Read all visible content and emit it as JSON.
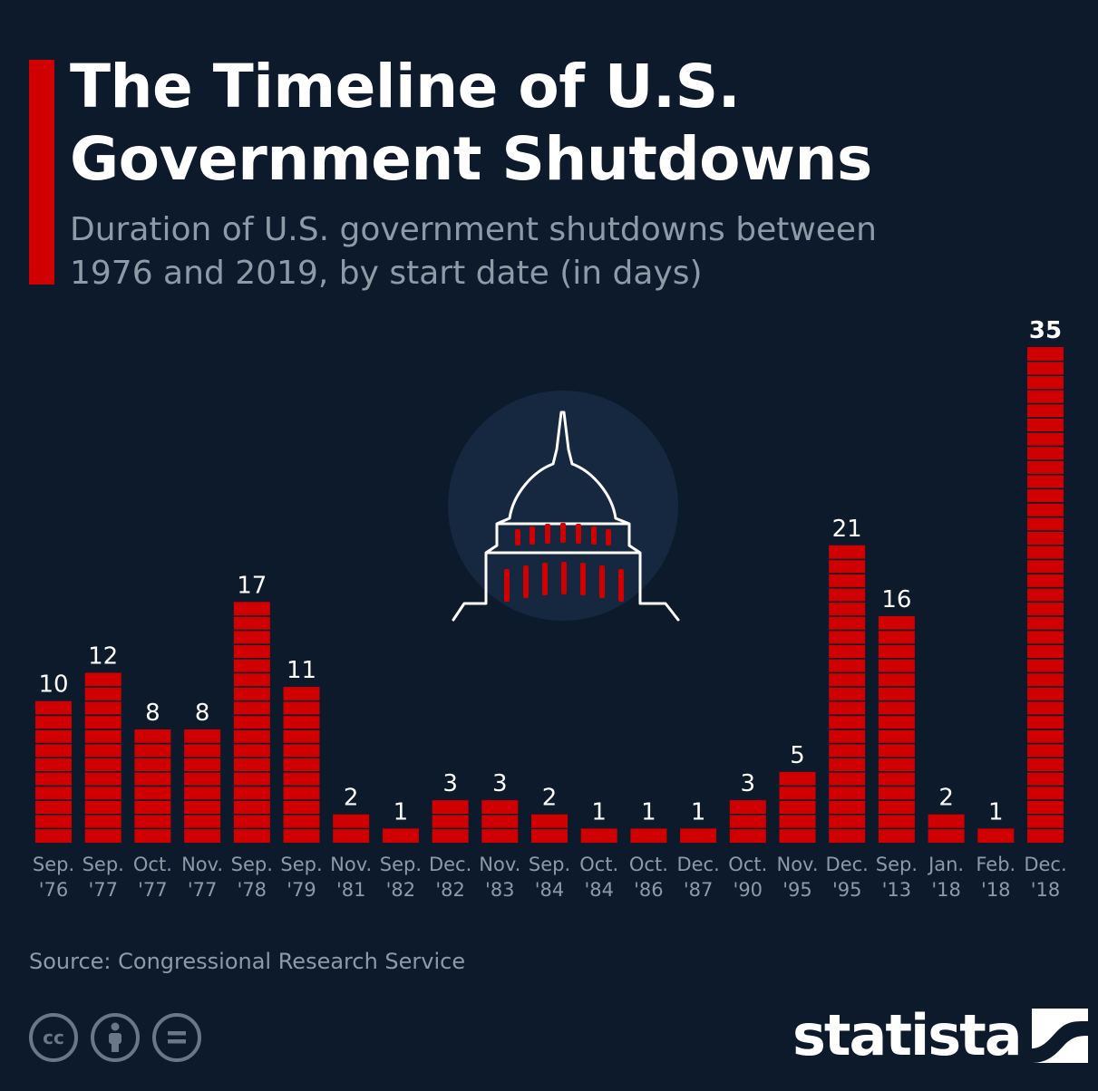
{
  "header": {
    "title_line1": "The Timeline of U.S.",
    "title_line2": "Government Shutdowns",
    "subtitle_line1": "Duration of U.S. government shutdowns between",
    "subtitle_line2": "1976 and 2019, by start date (in days)"
  },
  "footer": {
    "source": "Source: Congressional Research Service",
    "brand": "statista"
  },
  "icons": [
    "creative-commons-icon",
    "attribution-icon",
    "no-derivatives-icon",
    "statista-logo-icon",
    "capitol-dome-icon"
  ],
  "colors": {
    "background": "#0d1a2b",
    "bar": "#d10000",
    "accent": "#d10000",
    "muted_text": "#8e9aa6"
  },
  "chart_data": {
    "type": "bar",
    "title": "The Timeline of U.S. Government Shutdowns",
    "subtitle": "Duration of U.S. government shutdowns between 1976 and 2019, by start date (in days)",
    "categories": [
      [
        "Sep.",
        "'76"
      ],
      [
        "Sep.",
        "'77"
      ],
      [
        "Oct.",
        "'77"
      ],
      [
        "Nov.",
        "'77"
      ],
      [
        "Sep.",
        "'78"
      ],
      [
        "Sep.",
        "'79"
      ],
      [
        "Nov.",
        "'81"
      ],
      [
        "Sep.",
        "'82"
      ],
      [
        "Dec.",
        "'82"
      ],
      [
        "Nov.",
        "'83"
      ],
      [
        "Sep.",
        "'84"
      ],
      [
        "Oct.",
        "'84"
      ],
      [
        "Oct.",
        "'86"
      ],
      [
        "Dec.",
        "'87"
      ],
      [
        "Oct.",
        "'90"
      ],
      [
        "Nov.",
        "'95"
      ],
      [
        "Dec.",
        "'95"
      ],
      [
        "Sep.",
        "'13"
      ],
      [
        "Jan.",
        "'18"
      ],
      [
        "Feb.",
        "'18"
      ],
      [
        "Dec.",
        "'18"
      ]
    ],
    "values": [
      10,
      12,
      8,
      8,
      17,
      11,
      2,
      1,
      3,
      3,
      2,
      1,
      1,
      1,
      3,
      5,
      21,
      16,
      2,
      1,
      35
    ],
    "xlabel": "",
    "ylabel": "",
    "ylim": [
      0,
      35
    ],
    "grid": false,
    "data_labels": true,
    "highlight_last_label_bold": true
  }
}
